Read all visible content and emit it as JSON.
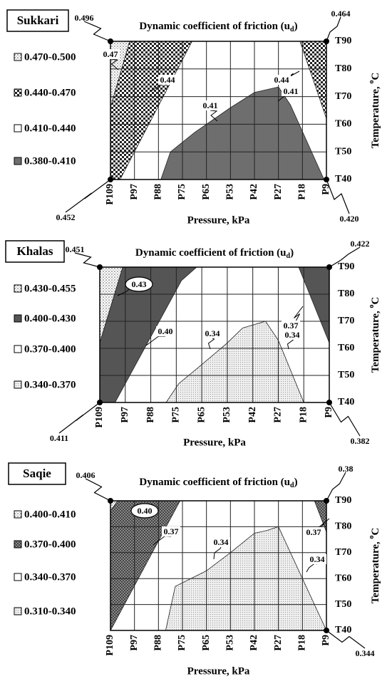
{
  "chart_data": [
    {
      "type": "contour",
      "panel_label": "Sukkari",
      "title_parts": [
        "Dynamic coefficient of friction (u",
        "d",
        ")"
      ],
      "x_label": "Pressure, kPa",
      "y_label_parts": [
        "Temperature, ",
        "o",
        "C"
      ],
      "categories": [
        "P109",
        "P97",
        "P88",
        "P75",
        "P65",
        "P53",
        "P42",
        "P27",
        "P18",
        "P9"
      ],
      "ylim": [
        40,
        90
      ],
      "yticks": [
        {
          "value": 40,
          "label": "T40"
        },
        {
          "value": 50,
          "label": "T50"
        },
        {
          "value": 60,
          "label": "T60"
        },
        {
          "value": 70,
          "label": "T70"
        },
        {
          "value": 80,
          "label": "T80"
        },
        {
          "value": 90,
          "label": "T90"
        }
      ],
      "legend": [
        {
          "label": "0.470-0.500",
          "fill": "dots"
        },
        {
          "label": "0.440-0.470",
          "fill": "checker"
        },
        {
          "label": "0.410-0.440",
          "fill": "white"
        },
        {
          "label": "0.380-0.410",
          "fill": "#6e6e6e"
        }
      ],
      "regions": [
        {
          "legend": 0,
          "points": [
            [
              0,
              90
            ],
            [
              0.8,
              90
            ],
            [
              0,
              66
            ]
          ]
        },
        {
          "legend": 1,
          "points": [
            [
              0.8,
              90
            ],
            [
              3.4,
              90
            ],
            [
              0.4,
              40
            ],
            [
              0,
              40
            ],
            [
              0,
              66
            ]
          ]
        },
        {
          "legend": 1,
          "points": [
            [
              7.9,
              90
            ],
            [
              9,
              90
            ],
            [
              9,
              62
            ]
          ]
        },
        {
          "legend": 3,
          "points": [
            [
              2.1,
              40
            ],
            [
              2.5,
              50
            ],
            [
              3.5,
              57
            ],
            [
              5,
              66
            ],
            [
              6,
              71.5
            ],
            [
              7,
              73.5
            ],
            [
              7.5,
              67
            ],
            [
              8.9,
              40
            ]
          ]
        }
      ],
      "annotations": [
        0.47,
        0.44,
        0.41,
        0.44,
        0.41
      ],
      "corners": [
        {
          "corner": "top-left",
          "value": 0.496
        },
        {
          "corner": "top-right",
          "value": 0.464
        },
        {
          "corner": "bottom-left",
          "value": 0.452
        },
        {
          "corner": "bottom-right",
          "value": 0.42,
          "label": "0.420"
        }
      ]
    },
    {
      "type": "contour",
      "panel_label": "Khalas",
      "title_parts": [
        "Dynamic coefficient of friction (u",
        "d",
        ")"
      ],
      "x_label": "Pressure, kPa",
      "y_label_parts": [
        "Temperature, ",
        "o",
        "C"
      ],
      "categories": [
        "P109",
        "P97",
        "P88",
        "P75",
        "P65",
        "P53",
        "P42",
        "P27",
        "P18",
        "P9"
      ],
      "ylim": [
        40,
        90
      ],
      "yticks": [
        {
          "value": 40,
          "label": "T40"
        },
        {
          "value": 50,
          "label": "T50"
        },
        {
          "value": 60,
          "label": "T60"
        },
        {
          "value": 70,
          "label": "T70"
        },
        {
          "value": 80,
          "label": "T80"
        },
        {
          "value": 90,
          "label": "T90"
        }
      ],
      "legend": [
        {
          "label": "0.430-0.455",
          "fill": "dots"
        },
        {
          "label": "0.400-0.430",
          "fill": "#555555"
        },
        {
          "label": "0.370-0.400",
          "fill": "white"
        },
        {
          "label": "0.340-0.370",
          "fill": "fine-dots"
        }
      ],
      "regions": [
        {
          "legend": 0,
          "points": [
            [
              0,
              90
            ],
            [
              0.9,
              90
            ],
            [
              0,
              62
            ]
          ]
        },
        {
          "legend": 1,
          "points": [
            [
              0.9,
              90
            ],
            [
              3.8,
              90
            ],
            [
              3.2,
              85
            ],
            [
              0.6,
              40
            ],
            [
              0,
              40
            ],
            [
              0,
              62
            ]
          ]
        },
        {
          "legend": 1,
          "points": [
            [
              7.8,
              90
            ],
            [
              9,
              90
            ],
            [
              9,
              62
            ]
          ]
        },
        {
          "legend": 3,
          "points": [
            [
              2.6,
              40
            ],
            [
              3.1,
              47
            ],
            [
              4,
              54
            ],
            [
              5,
              62
            ],
            [
              5.6,
              67.5
            ],
            [
              6.5,
              70
            ],
            [
              7,
              63
            ],
            [
              8,
              40
            ]
          ]
        }
      ],
      "annotations": [
        0.43,
        {
          "value": 0.4,
          "label": "0.40"
        },
        0.34,
        0.37,
        0.34
      ],
      "circled": [
        0
      ],
      "corners": [
        {
          "corner": "top-left",
          "value": 0.451
        },
        {
          "corner": "top-right",
          "value": 0.422
        },
        {
          "corner": "bottom-left",
          "value": 0.411
        },
        {
          "corner": "bottom-right",
          "value": 0.382
        }
      ]
    },
    {
      "type": "contour",
      "panel_label": "Saqie",
      "title_parts": [
        "Dynamic coefficient of friction (u",
        "d",
        ")"
      ],
      "x_label": "Pressure, kPa",
      "y_label_parts": [
        "Temperature, ",
        "o",
        "C"
      ],
      "categories": [
        "P109",
        "P97",
        "P88",
        "P75",
        "P65",
        "P53",
        "P42",
        "P27",
        "P18",
        "P9"
      ],
      "ylim": [
        40,
        90
      ],
      "yticks": [
        {
          "value": 40,
          "label": "T40"
        },
        {
          "value": 50,
          "label": "T50"
        },
        {
          "value": 60,
          "label": "T60"
        },
        {
          "value": 70,
          "label": "T70"
        },
        {
          "value": 80,
          "label": "T80"
        },
        {
          "value": 90,
          "label": "T90"
        }
      ],
      "legend": [
        {
          "label": "0.400-0.410",
          "fill": "dots"
        },
        {
          "label": "0.370-0.400",
          "fill": "checker-dark"
        },
        {
          "label": "0.340-0.370",
          "fill": "white"
        },
        {
          "label": "0.310-0.340",
          "fill": "fine-dots"
        }
      ],
      "regions": [
        {
          "legend": 0,
          "points": [
            [
              0,
              90
            ],
            [
              0.3,
              90
            ],
            [
              0,
              86
            ]
          ]
        },
        {
          "legend": 1,
          "points": [
            [
              0.3,
              90
            ],
            [
              2.9,
              90
            ],
            [
              0,
              40
            ],
            [
              0,
              86
            ]
          ]
        },
        {
          "legend": 1,
          "points": [
            [
              8.5,
              90
            ],
            [
              9,
              90
            ],
            [
              9,
              78
            ]
          ]
        },
        {
          "legend": 3,
          "points": [
            [
              2.3,
              40
            ],
            [
              2.7,
              57
            ],
            [
              4,
              63
            ],
            [
              5,
              70
            ],
            [
              6,
              77.5
            ],
            [
              6.5,
              78.5
            ],
            [
              7,
              80
            ],
            [
              9,
              40
            ]
          ]
        }
      ],
      "annotations": [
        {
          "value": 0.4,
          "label": "0.40"
        },
        0.37,
        0.34,
        0.37,
        0.34
      ],
      "circled": [
        0
      ],
      "corners": [
        {
          "corner": "top-left",
          "value": 0.406
        },
        {
          "corner": "top-right",
          "value": 0.38
        },
        {
          "corner": "bottom-right",
          "value": 0.344
        }
      ]
    }
  ]
}
